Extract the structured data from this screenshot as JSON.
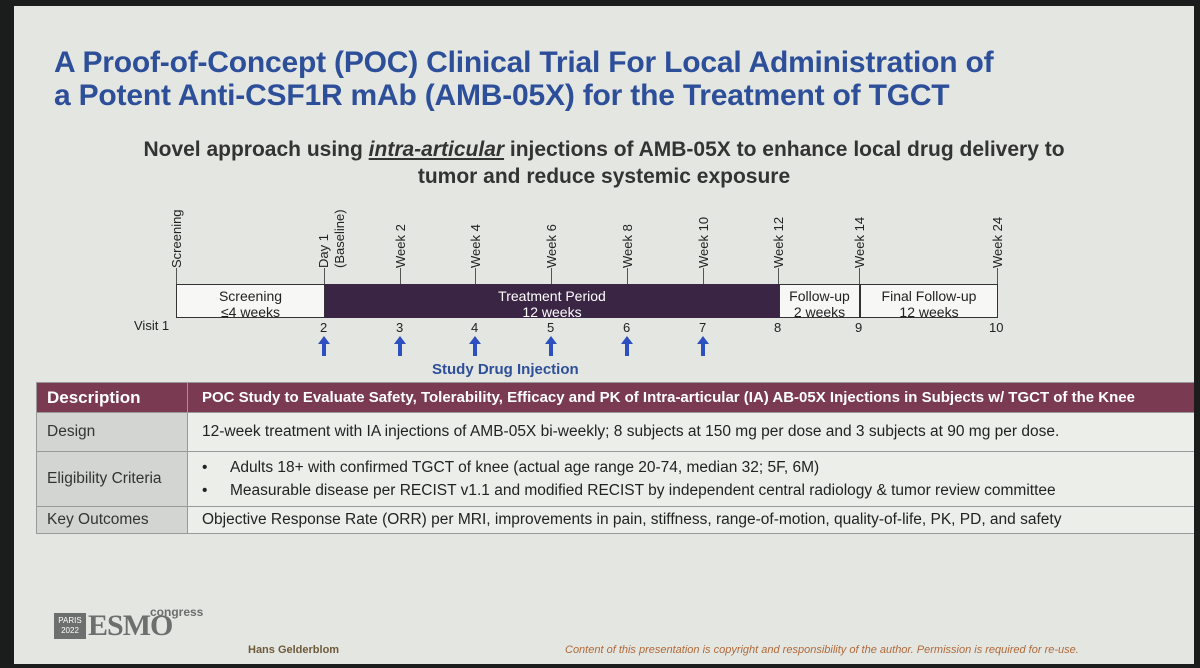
{
  "slide": {
    "title_line1": "A Proof-of-Concept (POC) Clinical Trial For Local Administration of",
    "title_line2": "a Potent Anti-CSF1R mAb (AMB-05X) for the Treatment of TGCT",
    "subtitle_pre": "Novel approach using ",
    "subtitle_em": "intra-articular",
    "subtitle_post": " injections of AMB-05X to enhance local drug delivery to",
    "subtitle_line2": "tumor and reduce systemic exposure"
  },
  "timeline": {
    "ticks": {
      "screening": "Screening",
      "day1": "Day 1",
      "baseline": "(Baseline)",
      "week2": "Week 2",
      "week4": "Week 4",
      "week6": "Week 6",
      "week8": "Week 8",
      "week10": "Week 10",
      "week12": "Week 12",
      "week14": "Week 14",
      "week24": "Week 24"
    },
    "boxes": {
      "screening_l1": "Screening",
      "screening_l2": "≤4 weeks",
      "treatment_l1": "Treatment Period",
      "treatment_l2": "12 weeks",
      "followup_l1": "Follow-up",
      "followup_l2": "2 weeks",
      "final_l1": "Final Follow-up",
      "final_l2": "12 weeks"
    },
    "visits": {
      "v1": "Visit 1",
      "v2": "2",
      "v3": "3",
      "v4": "4",
      "v5": "5",
      "v6": "6",
      "v7": "7",
      "v8": "8",
      "v9": "9",
      "v10": "10"
    },
    "injection_label": "Study Drug Injection",
    "arrow_color": "#2d4fbf"
  },
  "table": {
    "description_label": "Description",
    "description_value": "POC Study to Evaluate Safety, Tolerability, Efficacy and PK of Intra-articular (IA) AB-05X Injections in Subjects w/ TGCT of the Knee",
    "design_label": "Design",
    "design_value": "12-week treatment with IA injections of AMB-05X bi-weekly; 8 subjects at 150 mg per dose and 3 subjects at 90 mg per dose.",
    "eligibility_label": "Eligibility Criteria",
    "eligibility_items": [
      "Adults 18+ with confirmed TGCT of knee (actual age range 20-74, median 32; 5F, 6M)",
      "Measurable disease per RECIST v1.1 and modified RECIST by independent central radiology & tumor review committee"
    ],
    "bullet": "•",
    "outcomes_label": "Key Outcomes",
    "outcomes_value": "Objective Response Rate (ORR) per MRI, improvements in pain, stiffness, range-of-motion, quality-of-life, PK, PD, and safety"
  },
  "footer": {
    "logo_paris": "PARIS 2022",
    "logo_esmo": "ESMO",
    "logo_congress": "congress",
    "author": "Hans Gelderblom",
    "copyright": "Content of this presentation is copyright and responsibility of the author. Permission is required for re-use."
  },
  "colors": {
    "title": "#2d4f99",
    "treatment_bar": "#3b2544",
    "table_header": "#7a3a52"
  }
}
